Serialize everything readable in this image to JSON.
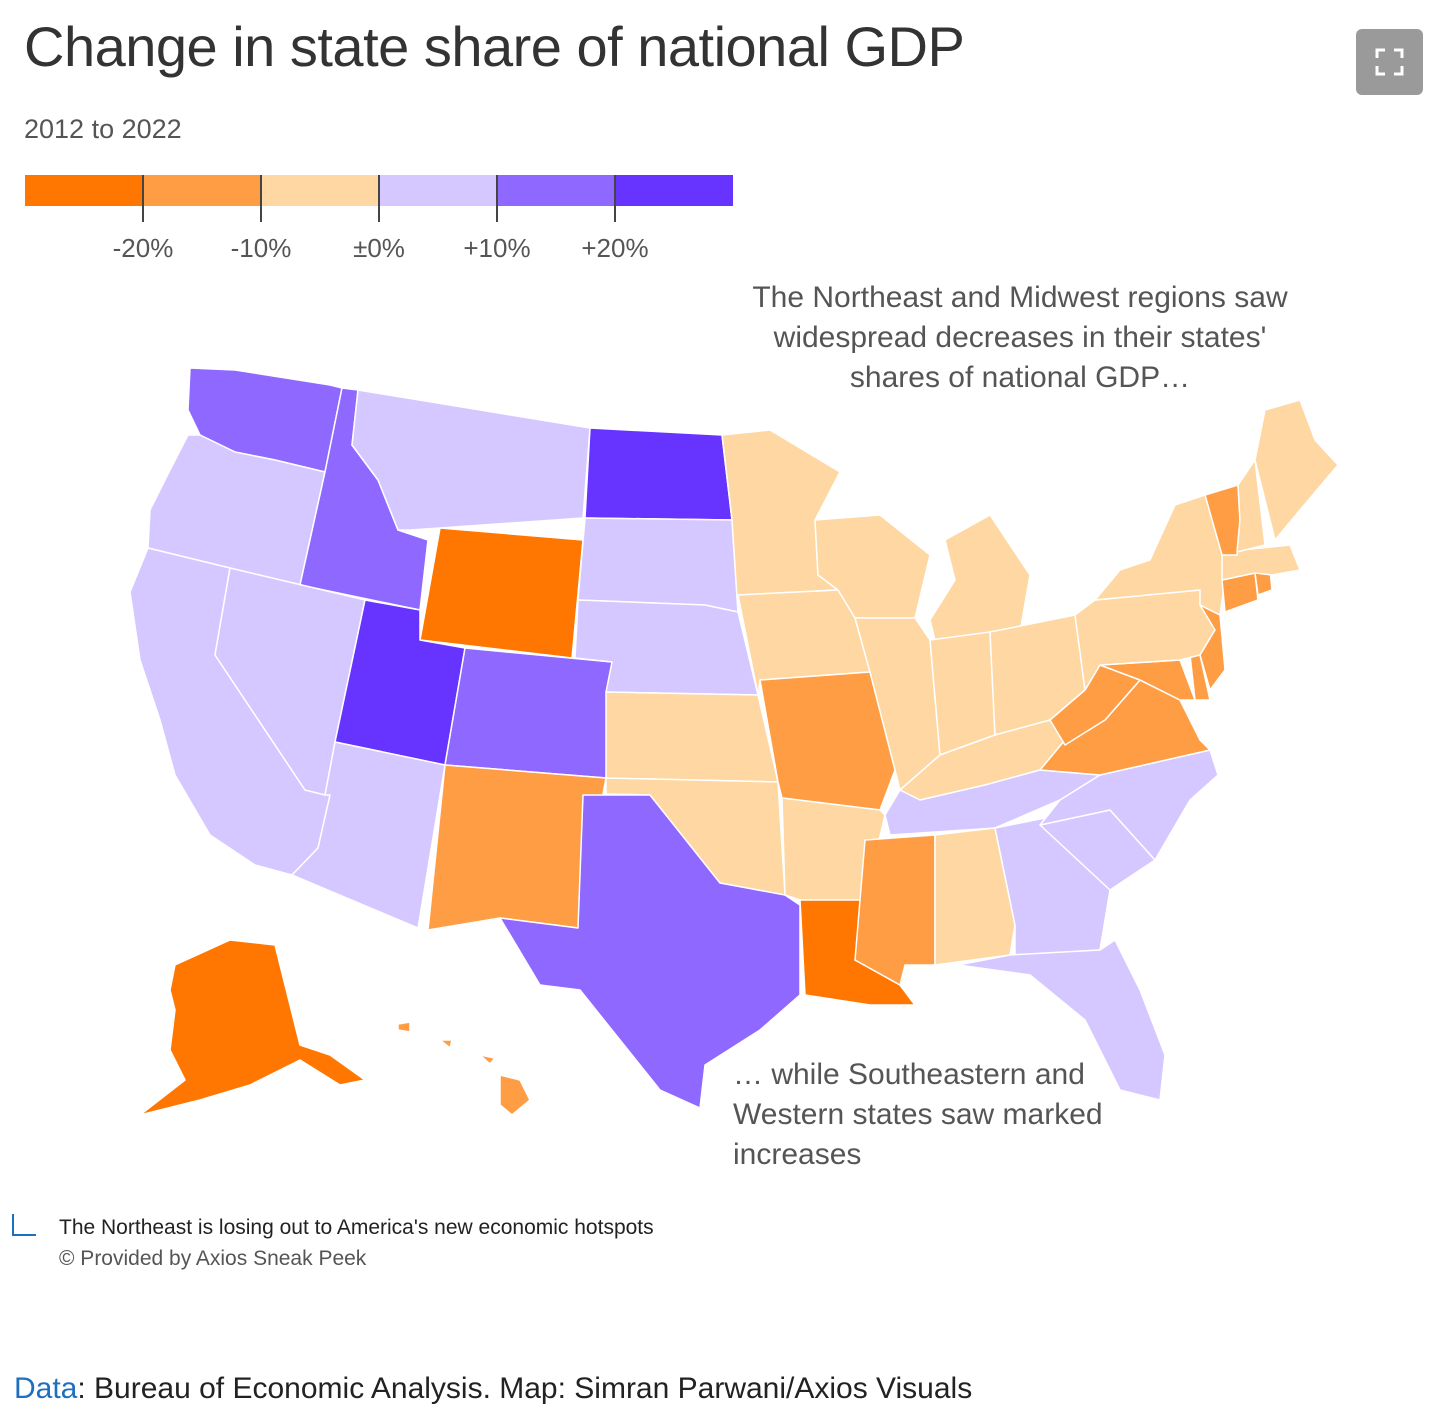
{
  "header": {
    "title": "Change in state share of national GDP",
    "subtitle": "2012 to 2022"
  },
  "toolbar": {
    "expand_icon": "fullscreen-icon"
  },
  "legend": {
    "colors": [
      "#ff7700",
      "#ff9d45",
      "#fed7a2",
      "#d5c7ff",
      "#8e68ff",
      "#6633ff"
    ],
    "tick_labels": [
      "-20%",
      "-10%",
      "±0%",
      "+10%",
      "+20%"
    ]
  },
  "annotations": {
    "northeast": "The Northeast and Midwest regions saw widespread decreases in their states' shares of national GDP…",
    "southeast": "… while Southeastern and Western states saw marked increases"
  },
  "chart_data": {
    "type": "choropleth",
    "title": "Change in state share of national GDP",
    "subtitle": "2012 to 2022",
    "bins": [
      {
        "label": "below -20%",
        "range": [
          null,
          -20
        ],
        "color": "#ff7700"
      },
      {
        "label": "-20% to -10%",
        "range": [
          -20,
          -10
        ],
        "color": "#ff9d45"
      },
      {
        "label": "-10% to 0%",
        "range": [
          -10,
          0
        ],
        "color": "#fed7a2"
      },
      {
        "label": "0% to +10%",
        "range": [
          0,
          10
        ],
        "color": "#d5c7ff"
      },
      {
        "label": "+10% to +20%",
        "range": [
          10,
          20
        ],
        "color": "#8e68ff"
      },
      {
        "label": "above +20%",
        "range": [
          20,
          null
        ],
        "color": "#6633ff"
      }
    ],
    "states": {
      "Washington": 4,
      "Oregon": 3,
      "California": 3,
      "Idaho": 4,
      "Nevada": 3,
      "Montana": 3,
      "Wyoming": 0,
      "Utah": 5,
      "Arizona": 3,
      "Colorado": 4,
      "New Mexico": 1,
      "North Dakota": 5,
      "South Dakota": 3,
      "Nebraska": 3,
      "Kansas": 2,
      "Oklahoma": 2,
      "Texas": 4,
      "Minnesota": 2,
      "Iowa": 2,
      "Missouri": 1,
      "Arkansas": 2,
      "Louisiana": 0,
      "Wisconsin": 2,
      "Illinois": 2,
      "Michigan": 2,
      "Indiana": 2,
      "Ohio": 2,
      "Kentucky": 2,
      "Tennessee": 3,
      "Mississippi": 1,
      "Alabama": 2,
      "Georgia": 3,
      "Florida": 3,
      "South Carolina": 3,
      "North Carolina": 3,
      "Virginia": 1,
      "West Virginia": 1,
      "Maryland": 1,
      "Delaware": 1,
      "Pennsylvania": 2,
      "New Jersey": 1,
      "New York": 2,
      "Connecticut": 1,
      "Rhode Island": 1,
      "Massachusetts": 2,
      "Vermont": 1,
      "New Hampshire": 2,
      "Maine": 2,
      "Alaska": 0,
      "Hawaii": 1
    }
  },
  "caption": {
    "text": "The Northeast is losing out to America's new economic hotspots",
    "credit": "© Provided by Axios Sneak Peek",
    "source_link": "Data",
    "source_text": ": Bureau of Economic Analysis. Map: Simran Parwani/Axios Visuals"
  }
}
